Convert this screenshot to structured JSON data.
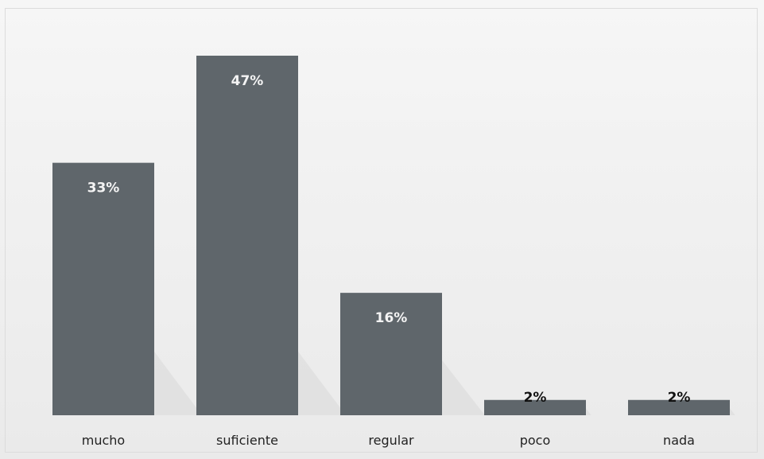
{
  "chart_data": {
    "type": "bar",
    "title": "",
    "xlabel": "",
    "ylabel": "",
    "categories": [
      "mucho",
      "suficiente",
      "regular",
      "poco",
      "nada"
    ],
    "values": [
      33,
      47,
      16,
      2,
      2
    ],
    "value_labels": [
      "33%",
      "47%",
      "16%",
      "2%",
      "2%"
    ],
    "ylim": [
      0,
      47
    ],
    "grid": false,
    "legend": "none",
    "colors": {
      "bar": "#5f666b",
      "label_inside": "#f4f4f4",
      "label_outside": "#111111"
    }
  }
}
